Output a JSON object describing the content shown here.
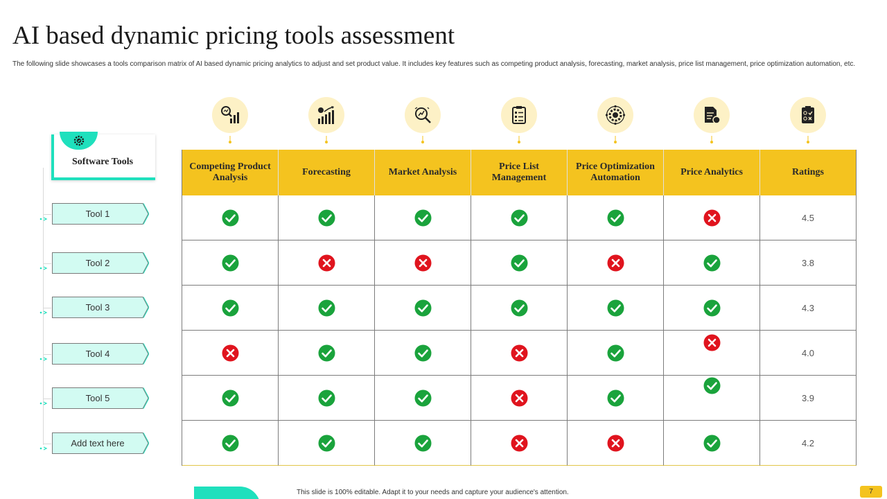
{
  "title": "AI based dynamic pricing tools assessment",
  "subtitle": "The following slide showcases a tools comparison matrix of AI based dynamic pricing analytics to adjust and set product value. It includes key features such as competing product analysis, forecasting, market analysis, price list management,  price optimization automation,  etc.",
  "software_tools_label": "Software Tools",
  "columns": [
    {
      "label": "Competing Product Analysis",
      "icon": "magnifier-chart-icon"
    },
    {
      "label": "Forecasting",
      "icon": "growth-chart-icon"
    },
    {
      "label": "Market Analysis",
      "icon": "market-analysis-icon"
    },
    {
      "label": "Price List Management",
      "icon": "checklist-icon"
    },
    {
      "label": "Price Optimization Automation",
      "icon": "gear-automation-icon"
    },
    {
      "label": "Price Analytics",
      "icon": "document-coin-icon"
    },
    {
      "label": "Ratings",
      "icon": "checklist-tick-cross-icon"
    }
  ],
  "rows": [
    {
      "tool": "Tool 1",
      "features": [
        "yes",
        "yes",
        "yes",
        "yes",
        "yes",
        "no"
      ],
      "rating": "4.5"
    },
    {
      "tool": "Tool 2",
      "features": [
        "yes",
        "no",
        "no",
        "yes",
        "no",
        "yes"
      ],
      "rating": "3.8"
    },
    {
      "tool": "Tool 3",
      "features": [
        "yes",
        "yes",
        "yes",
        "yes",
        "yes",
        "yes"
      ],
      "rating": "4.3"
    },
    {
      "tool": "Tool 4",
      "features": [
        "no",
        "yes",
        "yes",
        "no",
        "yes",
        "no"
      ],
      "rating": "4.0"
    },
    {
      "tool": "Tool 5",
      "features": [
        "yes",
        "yes",
        "yes",
        "no",
        "yes",
        "yes"
      ],
      "rating": "3.9"
    },
    {
      "tool": "Add text here",
      "features": [
        "yes",
        "yes",
        "yes",
        "no",
        "no",
        "yes"
      ],
      "rating": "4.2"
    }
  ],
  "footer_text": "This slide is 100% editable. Adapt it to your needs and capture your audience's attention.",
  "page_number": "7",
  "colors": {
    "accent_teal": "#1fe0bd",
    "accent_yellow": "#f4c31f",
    "check_green": "#1aa33c",
    "cross_red": "#e0141e",
    "icon_bg": "#fdf1c6"
  }
}
